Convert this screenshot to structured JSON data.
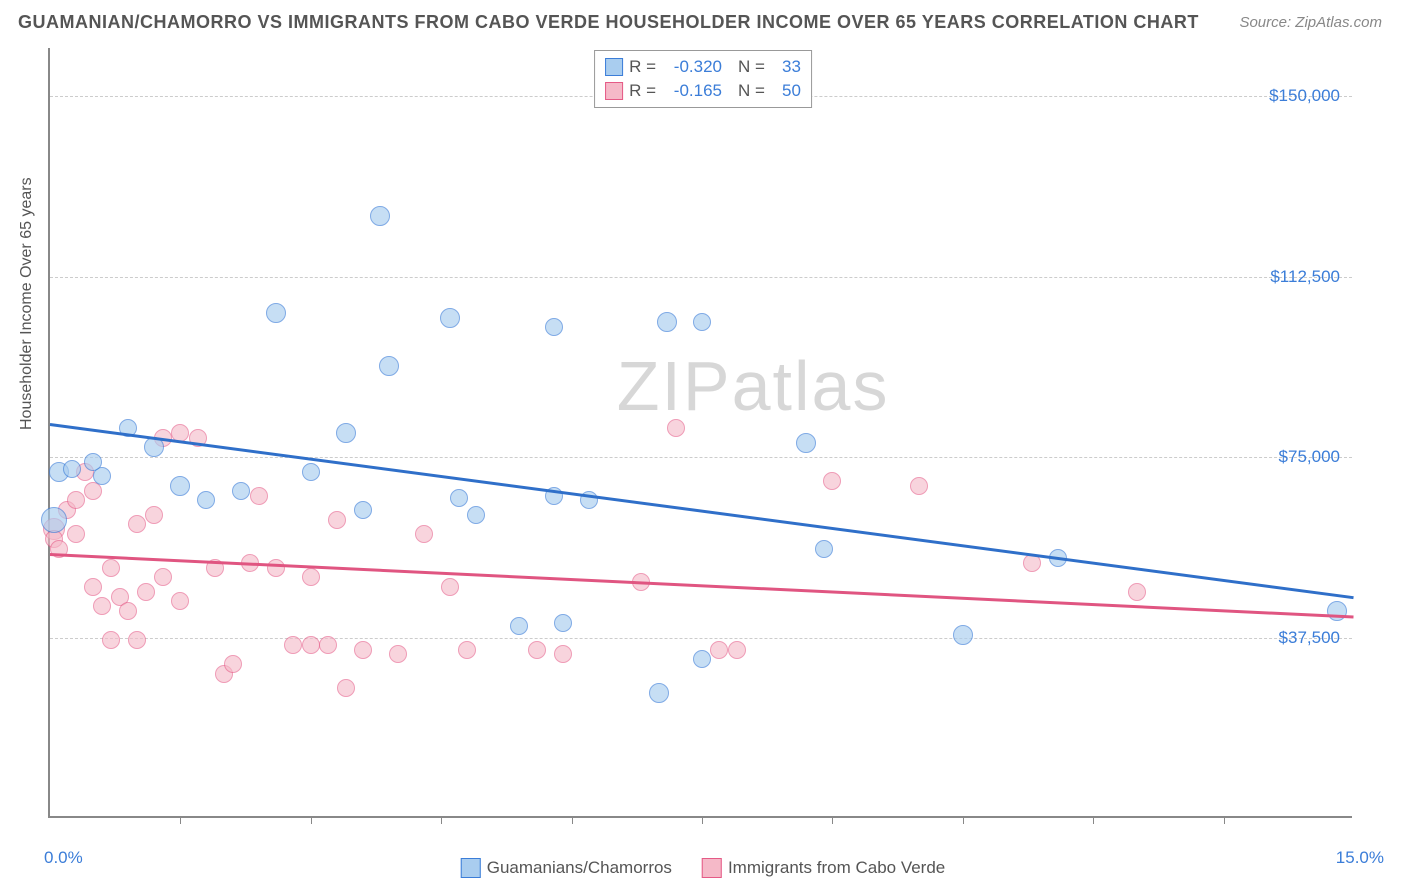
{
  "title": "GUAMANIAN/CHAMORRO VS IMMIGRANTS FROM CABO VERDE HOUSEHOLDER INCOME OVER 65 YEARS CORRELATION CHART",
  "source": "Source: ZipAtlas.com",
  "watermark": "ZIPatlas",
  "ylabel": "Householder Income Over 65 years",
  "chart": {
    "type": "scatter",
    "background_color": "#ffffff",
    "grid_color": "#cccccc",
    "axis_color": "#888888",
    "xlim": [
      0.0,
      15.0
    ],
    "ylim": [
      0,
      160000
    ],
    "xticks_minor": [
      1.5,
      3.0,
      4.5,
      6.0,
      7.5,
      9.0,
      10.5,
      12.0,
      13.5
    ],
    "xlabel_min": "0.0%",
    "xlabel_max": "15.0%",
    "yticks": [
      {
        "v": 37500,
        "label": "$37,500"
      },
      {
        "v": 75000,
        "label": "$75,000"
      },
      {
        "v": 112500,
        "label": "$112,500"
      },
      {
        "v": 150000,
        "label": "$150,000"
      }
    ],
    "series": [
      {
        "name": "Guamanians/Chamorros",
        "fill": "#a9cdef",
        "stroke": "#3b7dd8",
        "opacity": 0.65,
        "R": "-0.320",
        "N": "33",
        "trend": {
          "y_at_xmin": 82000,
          "y_at_xmax": 46000,
          "color": "#2f6fc9"
        },
        "points": [
          {
            "x": 0.05,
            "y": 62000,
            "r": 13
          },
          {
            "x": 0.1,
            "y": 72000,
            "r": 10
          },
          {
            "x": 0.25,
            "y": 72500,
            "r": 9
          },
          {
            "x": 0.6,
            "y": 71000,
            "r": 9
          },
          {
            "x": 0.5,
            "y": 74000,
            "r": 9
          },
          {
            "x": 1.2,
            "y": 77000,
            "r": 10
          },
          {
            "x": 0.9,
            "y": 81000,
            "r": 9
          },
          {
            "x": 1.5,
            "y": 69000,
            "r": 10
          },
          {
            "x": 1.8,
            "y": 66000,
            "r": 9
          },
          {
            "x": 2.2,
            "y": 68000,
            "r": 9
          },
          {
            "x": 2.6,
            "y": 105000,
            "r": 10
          },
          {
            "x": 3.0,
            "y": 72000,
            "r": 9
          },
          {
            "x": 3.4,
            "y": 80000,
            "r": 10
          },
          {
            "x": 3.6,
            "y": 64000,
            "r": 9
          },
          {
            "x": 3.8,
            "y": 125000,
            "r": 10
          },
          {
            "x": 3.9,
            "y": 94000,
            "r": 10
          },
          {
            "x": 4.6,
            "y": 104000,
            "r": 10
          },
          {
            "x": 4.7,
            "y": 66500,
            "r": 9
          },
          {
            "x": 4.9,
            "y": 63000,
            "r": 9
          },
          {
            "x": 5.4,
            "y": 40000,
            "r": 9
          },
          {
            "x": 5.8,
            "y": 67000,
            "r": 9
          },
          {
            "x": 5.9,
            "y": 40500,
            "r": 9
          },
          {
            "x": 5.8,
            "y": 102000,
            "r": 9
          },
          {
            "x": 6.2,
            "y": 66000,
            "r": 9
          },
          {
            "x": 7.0,
            "y": 26000,
            "r": 10
          },
          {
            "x": 7.1,
            "y": 103000,
            "r": 10
          },
          {
            "x": 7.5,
            "y": 103000,
            "r": 9
          },
          {
            "x": 7.5,
            "y": 33000,
            "r": 9
          },
          {
            "x": 8.7,
            "y": 78000,
            "r": 10
          },
          {
            "x": 8.9,
            "y": 56000,
            "r": 9
          },
          {
            "x": 10.5,
            "y": 38000,
            "r": 10
          },
          {
            "x": 11.6,
            "y": 54000,
            "r": 9
          },
          {
            "x": 14.8,
            "y": 43000,
            "r": 10
          }
        ]
      },
      {
        "name": "Immigrants from Cabo Verde",
        "fill": "#f5b9c8",
        "stroke": "#e55a86",
        "opacity": 0.6,
        "R": "-0.165",
        "N": "50",
        "trend": {
          "y_at_xmin": 55000,
          "y_at_xmax": 42000,
          "color": "#e05581"
        },
        "points": [
          {
            "x": 0.05,
            "y": 60000,
            "r": 11
          },
          {
            "x": 0.05,
            "y": 58000,
            "r": 9
          },
          {
            "x": 0.1,
            "y": 56000,
            "r": 9
          },
          {
            "x": 0.2,
            "y": 64000,
            "r": 9
          },
          {
            "x": 0.3,
            "y": 66000,
            "r": 9
          },
          {
            "x": 0.3,
            "y": 59000,
            "r": 9
          },
          {
            "x": 0.4,
            "y": 72000,
            "r": 9
          },
          {
            "x": 0.5,
            "y": 68000,
            "r": 9
          },
          {
            "x": 0.5,
            "y": 48000,
            "r": 9
          },
          {
            "x": 0.6,
            "y": 44000,
            "r": 9
          },
          {
            "x": 0.7,
            "y": 52000,
            "r": 9
          },
          {
            "x": 0.7,
            "y": 37000,
            "r": 9
          },
          {
            "x": 0.8,
            "y": 46000,
            "r": 9
          },
          {
            "x": 0.9,
            "y": 43000,
            "r": 9
          },
          {
            "x": 1.0,
            "y": 61000,
            "r": 9
          },
          {
            "x": 1.0,
            "y": 37000,
            "r": 9
          },
          {
            "x": 1.1,
            "y": 47000,
            "r": 9
          },
          {
            "x": 1.2,
            "y": 63000,
            "r": 9
          },
          {
            "x": 1.3,
            "y": 50000,
            "r": 9
          },
          {
            "x": 1.3,
            "y": 79000,
            "r": 9
          },
          {
            "x": 1.5,
            "y": 80000,
            "r": 9
          },
          {
            "x": 1.5,
            "y": 45000,
            "r": 9
          },
          {
            "x": 1.7,
            "y": 79000,
            "r": 9
          },
          {
            "x": 1.9,
            "y": 52000,
            "r": 9
          },
          {
            "x": 2.0,
            "y": 30000,
            "r": 9
          },
          {
            "x": 2.1,
            "y": 32000,
            "r": 9
          },
          {
            "x": 2.3,
            "y": 53000,
            "r": 9
          },
          {
            "x": 2.4,
            "y": 67000,
            "r": 9
          },
          {
            "x": 2.6,
            "y": 52000,
            "r": 9
          },
          {
            "x": 2.8,
            "y": 36000,
            "r": 9
          },
          {
            "x": 3.0,
            "y": 50000,
            "r": 9
          },
          {
            "x": 3.0,
            "y": 36000,
            "r": 9
          },
          {
            "x": 3.2,
            "y": 36000,
            "r": 9
          },
          {
            "x": 3.3,
            "y": 62000,
            "r": 9
          },
          {
            "x": 3.4,
            "y": 27000,
            "r": 9
          },
          {
            "x": 3.6,
            "y": 35000,
            "r": 9
          },
          {
            "x": 4.0,
            "y": 34000,
            "r": 9
          },
          {
            "x": 4.3,
            "y": 59000,
            "r": 9
          },
          {
            "x": 4.6,
            "y": 48000,
            "r": 9
          },
          {
            "x": 4.8,
            "y": 35000,
            "r": 9
          },
          {
            "x": 5.6,
            "y": 35000,
            "r": 9
          },
          {
            "x": 5.9,
            "y": 34000,
            "r": 9
          },
          {
            "x": 6.8,
            "y": 49000,
            "r": 9
          },
          {
            "x": 7.2,
            "y": 81000,
            "r": 9
          },
          {
            "x": 7.7,
            "y": 35000,
            "r": 9
          },
          {
            "x": 7.9,
            "y": 35000,
            "r": 9
          },
          {
            "x": 9.0,
            "y": 70000,
            "r": 9
          },
          {
            "x": 10.0,
            "y": 69000,
            "r": 9
          },
          {
            "x": 11.3,
            "y": 53000,
            "r": 9
          },
          {
            "x": 12.5,
            "y": 47000,
            "r": 9
          }
        ]
      }
    ]
  },
  "legend_bottom": [
    {
      "label": "Guamanians/Chamorros",
      "fill": "#a9cdef",
      "stroke": "#3b7dd8"
    },
    {
      "label": "Immigrants from Cabo Verde",
      "fill": "#f5b9c8",
      "stroke": "#e55a86"
    }
  ]
}
